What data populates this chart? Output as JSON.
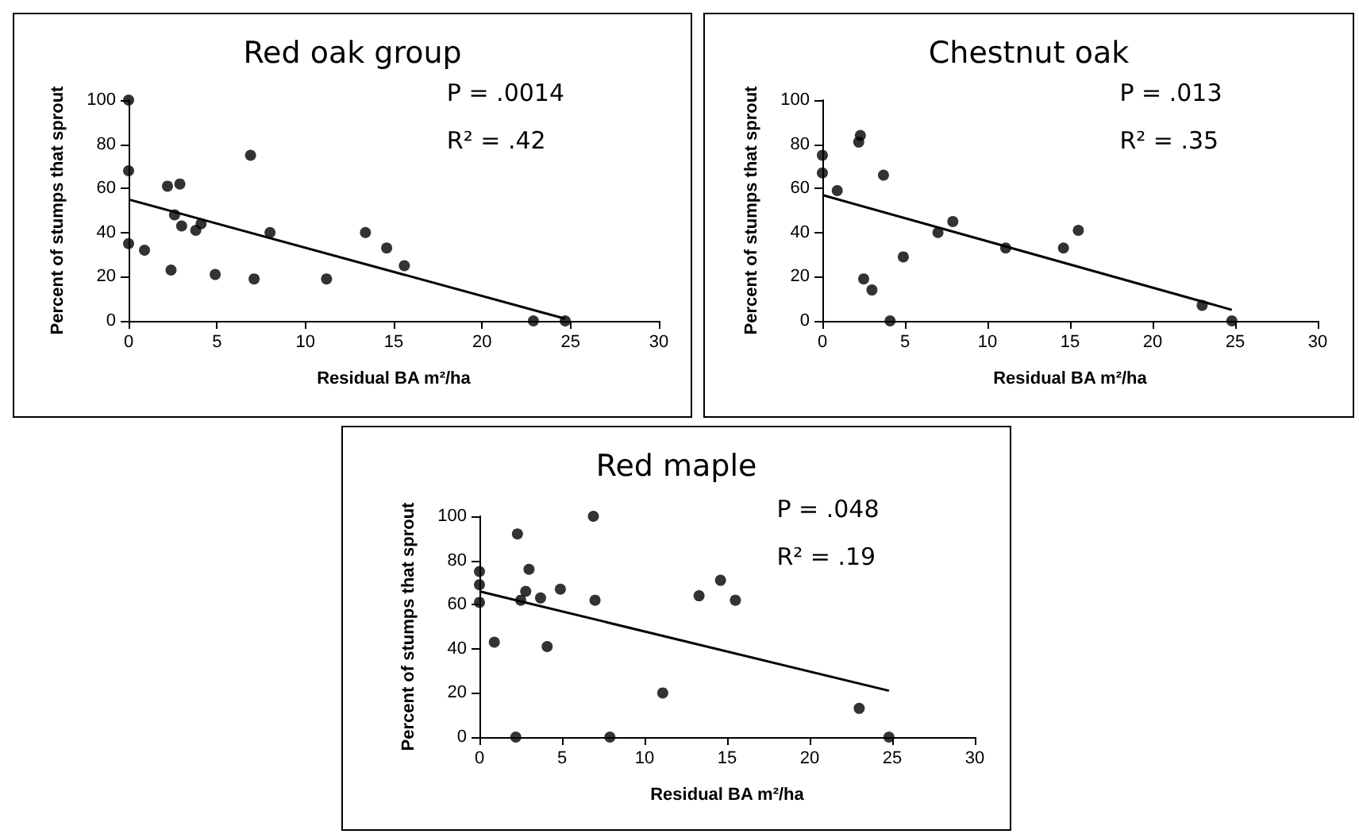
{
  "chart_data": [
    {
      "type": "scatter",
      "title": "Red oak group",
      "xlabel": "Residual BA m²/ha",
      "ylabel": "Percent of stumps that sprout",
      "annotations": [
        "P = .0014",
        "R² = .42"
      ],
      "xlim": [
        0,
        30
      ],
      "xticks": [
        0,
        5,
        10,
        15,
        20,
        25,
        30
      ],
      "ylim": [
        0,
        100
      ],
      "yticks": [
        0,
        20,
        40,
        60,
        80,
        100
      ],
      "grid": false,
      "marker": "circle",
      "series": [
        {
          "color": "#000000",
          "x": [
            0,
            0,
            0,
            0.9,
            2.2,
            2.9,
            2.4,
            2.6,
            3,
            3.8,
            4.1,
            4.9,
            6.9,
            7.1,
            8,
            11.2,
            13.4,
            14.6,
            15.6,
            22.9,
            24.7
          ],
          "values": [
            100,
            68,
            35,
            32,
            61,
            62,
            23,
            48,
            43,
            41,
            44,
            21,
            75,
            19,
            40,
            19,
            40,
            33,
            25,
            0,
            0
          ]
        },
        {
          "type": "line",
          "marker": "none",
          "color": "#000000",
          "x": [
            0,
            24.7
          ],
          "values": [
            55,
            1
          ]
        }
      ]
    },
    {
      "type": "scatter",
      "title": "Chestnut oak",
      "xlabel": "Residual BA m²/ha",
      "ylabel": "Percent of stumps that sprout",
      "annotations": [
        "P = .013",
        "R² = .35"
      ],
      "xlim": [
        0,
        30
      ],
      "xticks": [
        0,
        5,
        10,
        15,
        20,
        25,
        30
      ],
      "ylim": [
        0,
        100
      ],
      "yticks": [
        0,
        20,
        40,
        60,
        80,
        100
      ],
      "grid": false,
      "marker": "circle",
      "series": [
        {
          "color": "#000000",
          "x": [
            0,
            0,
            0.9,
            2.2,
            2.3,
            3.7,
            2.5,
            3,
            4.1,
            4.9,
            7,
            7.9,
            11.1,
            14.6,
            15.5,
            23,
            24.8
          ],
          "values": [
            67,
            75,
            59,
            81,
            84,
            66,
            19,
            14,
            0,
            29,
            40,
            45,
            33,
            33,
            41,
            7,
            0
          ]
        },
        {
          "type": "line",
          "marker": "none",
          "color": "#000000",
          "x": [
            0,
            24.8
          ],
          "values": [
            57,
            5
          ]
        }
      ]
    },
    {
      "type": "scatter",
      "title": "Red maple",
      "xlabel": "Residual BA m²/ha",
      "ylabel": "Percent of stumps that sprout",
      "annotations": [
        "P = .048",
        "R² = .19"
      ],
      "xlim": [
        0,
        30
      ],
      "xticks": [
        0,
        5,
        10,
        15,
        20,
        25,
        30
      ],
      "ylim": [
        0,
        100
      ],
      "yticks": [
        0,
        20,
        40,
        60,
        80,
        100
      ],
      "grid": false,
      "marker": "circle",
      "series": [
        {
          "color": "#000000",
          "x": [
            0,
            0,
            0,
            0.9,
            2.3,
            2.2,
            2.5,
            2.8,
            3,
            3.7,
            4.1,
            4.9,
            6.9,
            7,
            7.9,
            11.1,
            13.3,
            14.6,
            15.5,
            23,
            24.8
          ],
          "values": [
            75,
            69,
            61,
            43,
            92,
            0,
            62,
            66,
            76,
            63,
            41,
            67,
            100,
            62,
            0,
            20,
            64,
            71,
            62,
            13,
            0
          ]
        },
        {
          "type": "line",
          "marker": "none",
          "color": "#000000",
          "x": [
            0,
            24.8
          ],
          "values": [
            66,
            21
          ]
        }
      ]
    }
  ]
}
